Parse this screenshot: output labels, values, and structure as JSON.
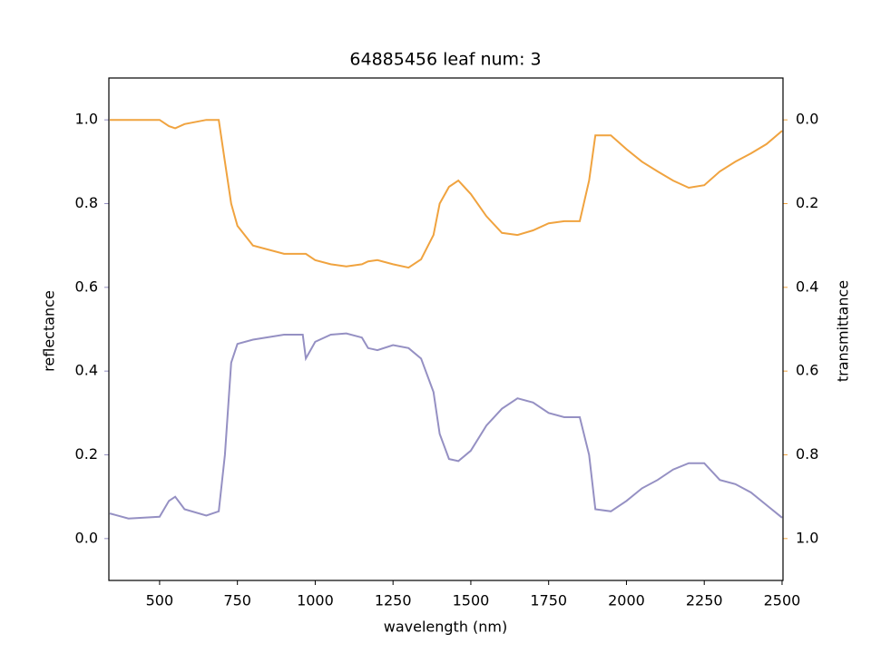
{
  "chart_data": {
    "type": "line",
    "title": "64885456 leaf num: 3",
    "x_label": "wavelength (nm)",
    "y_label": "reflectance",
    "y2_label": "transmittance",
    "x": [
      340,
      400,
      500,
      530,
      550,
      580,
      650,
      690,
      710,
      730,
      750,
      800,
      900,
      960,
      970,
      1000,
      1050,
      1100,
      1150,
      1170,
      1200,
      1250,
      1300,
      1340,
      1380,
      1400,
      1430,
      1460,
      1500,
      1550,
      1600,
      1650,
      1700,
      1750,
      1800,
      1850,
      1880,
      1900,
      1950,
      2000,
      2050,
      2100,
      2150,
      2200,
      2250,
      2300,
      2350,
      2400,
      2450,
      2500
    ],
    "series": [
      {
        "name": "reflectance",
        "color": "#9590c3",
        "axis": "y",
        "values": [
          0.06,
          0.048,
          0.052,
          0.09,
          0.1,
          0.07,
          0.055,
          0.065,
          0.2,
          0.42,
          0.465,
          0.475,
          0.487,
          0.487,
          0.43,
          0.47,
          0.487,
          0.49,
          0.48,
          0.455,
          0.45,
          0.462,
          0.455,
          0.43,
          0.35,
          0.25,
          0.19,
          0.185,
          0.21,
          0.27,
          0.31,
          0.335,
          0.325,
          0.3,
          0.29,
          0.29,
          0.2,
          0.07,
          0.065,
          0.09,
          0.12,
          0.14,
          0.165,
          0.18,
          0.18,
          0.14,
          0.13,
          0.11,
          0.08,
          0.05
        ]
      },
      {
        "name": "transmittance",
        "color": "#f0a33f",
        "axis": "y2",
        "values": [
          0.0,
          0.0,
          0.0,
          0.015,
          0.02,
          0.01,
          0.0,
          0.0,
          0.1,
          0.2,
          0.253,
          0.3,
          0.32,
          0.32,
          0.32,
          0.335,
          0.345,
          0.35,
          0.345,
          0.338,
          0.335,
          0.345,
          0.353,
          0.333,
          0.275,
          0.2,
          0.16,
          0.145,
          0.177,
          0.23,
          0.27,
          0.275,
          0.264,
          0.247,
          0.242,
          0.242,
          0.145,
          0.037,
          0.037,
          0.07,
          0.1,
          0.123,
          0.145,
          0.162,
          0.156,
          0.123,
          0.1,
          0.08,
          0.058,
          0.026
        ]
      }
    ],
    "xlim": [
      337,
      2503
    ],
    "xticks": [
      500,
      750,
      1000,
      1250,
      1500,
      1750,
      2000,
      2250,
      2500
    ],
    "ylim": [
      -0.1,
      1.1
    ],
    "yticks": [
      {
        "value": 0,
        "label": "0.0"
      },
      0.2,
      0.4,
      0.6,
      0.8,
      {
        "value": 1,
        "label": "1.0"
      }
    ],
    "y2lim": [
      1.1,
      -0.1
    ],
    "y2ticks": [
      {
        "value": 0,
        "label": "0.0"
      },
      0.2,
      0.4,
      0.6,
      0.8,
      {
        "value": 1,
        "label": "1.0"
      }
    ]
  }
}
